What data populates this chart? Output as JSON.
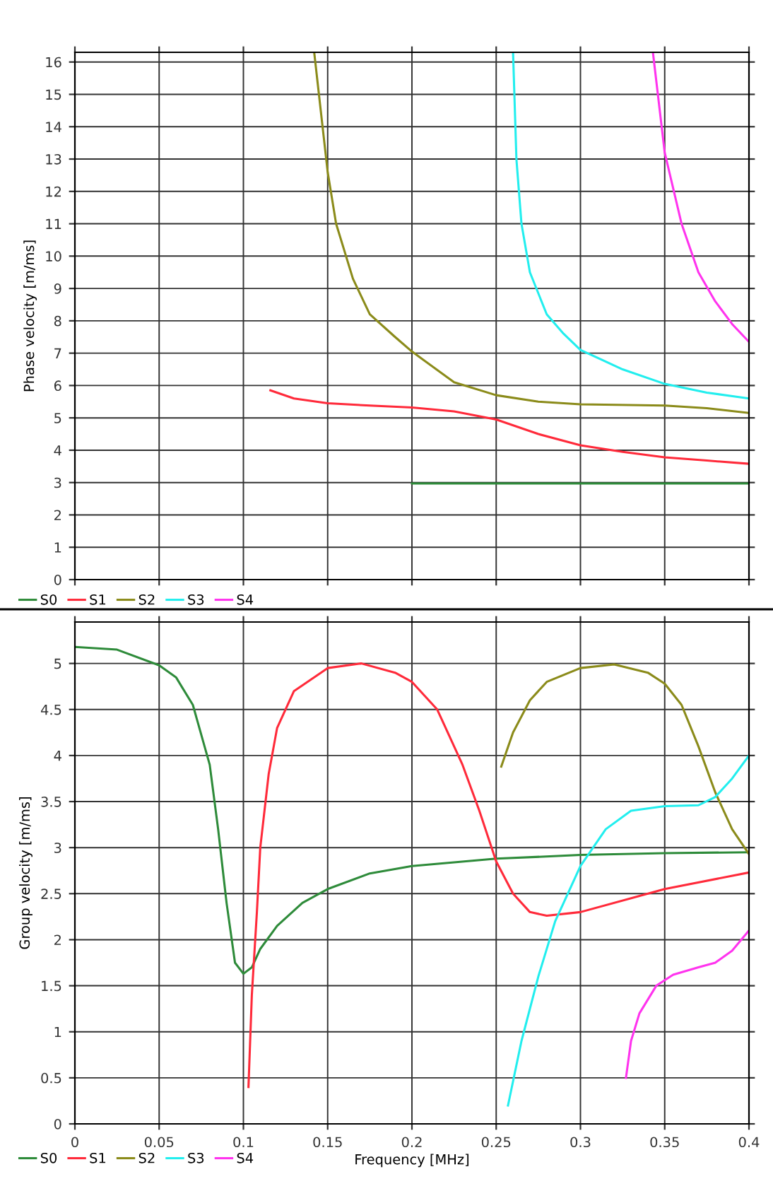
{
  "chart_data": [
    {
      "type": "line",
      "ylabel": "Phase velocity [m/ms]",
      "xlim": [
        0,
        0.4
      ],
      "xticks": [
        0,
        0.05,
        0.1,
        0.15,
        0.2,
        0.25,
        0.3,
        0.35,
        0.4
      ],
      "ylim": [
        0,
        16.3
      ],
      "yticks": [
        0,
        1,
        2,
        3,
        4,
        5,
        6,
        7,
        8,
        9,
        10,
        11,
        12,
        13,
        14,
        15,
        16
      ],
      "tick_labels": "y",
      "grid": true,
      "legend": "bottom left",
      "series": [
        {
          "name": "S0",
          "color": "#2e8b3a",
          "x": [
            0.2,
            0.25,
            0.3,
            0.35,
            0.4
          ],
          "values": [
            2.97,
            2.97,
            2.97,
            2.97,
            2.97
          ]
        },
        {
          "name": "S1",
          "color": "#ff2a3a",
          "x": [
            0.116,
            0.13,
            0.15,
            0.175,
            0.2,
            0.225,
            0.25,
            0.275,
            0.3,
            0.325,
            0.35,
            0.375,
            0.4
          ],
          "values": [
            5.85,
            5.6,
            5.45,
            5.38,
            5.32,
            5.2,
            4.95,
            4.5,
            4.15,
            3.95,
            3.78,
            3.68,
            3.58
          ]
        },
        {
          "name": "S2",
          "color": "#8b8b1a",
          "x": [
            0.142,
            0.15,
            0.155,
            0.165,
            0.175,
            0.19,
            0.2,
            0.225,
            0.25,
            0.275,
            0.3,
            0.35,
            0.375,
            0.4
          ],
          "values": [
            16.3,
            12.6,
            11,
            9.3,
            8.2,
            7.5,
            7.05,
            6.1,
            5.7,
            5.5,
            5.42,
            5.38,
            5.3,
            5.15
          ]
        },
        {
          "name": "S3",
          "color": "#22eeee",
          "x": [
            0.26,
            0.262,
            0.265,
            0.27,
            0.28,
            0.29,
            0.3,
            0.325,
            0.35,
            0.375,
            0.4
          ],
          "values": [
            16.3,
            13,
            11,
            9.5,
            8.2,
            7.6,
            7.1,
            6.5,
            6.05,
            5.78,
            5.6
          ]
        },
        {
          "name": "S4",
          "color": "#ff33ee",
          "x": [
            0.343,
            0.35,
            0.36,
            0.37,
            0.38,
            0.39,
            0.4
          ],
          "values": [
            16.3,
            13.2,
            11,
            9.5,
            8.6,
            7.9,
            7.35
          ]
        }
      ]
    },
    {
      "type": "line",
      "xlabel": "Frequency [MHz]",
      "ylabel": "Group velocity [m/ms]",
      "xlim": [
        0,
        0.4
      ],
      "xticks": [
        0,
        0.05,
        0.1,
        0.15,
        0.2,
        0.25,
        0.3,
        0.35,
        0.4
      ],
      "ylim": [
        0,
        5.45
      ],
      "yticks": [
        0,
        0.5,
        1,
        1.5,
        2,
        2.5,
        3,
        3.5,
        4,
        4.5,
        5
      ],
      "grid": true,
      "legend": "bottom left",
      "series": [
        {
          "name": "S0",
          "color": "#2e8b3a",
          "x": [
            0,
            0.025,
            0.05,
            0.06,
            0.07,
            0.08,
            0.085,
            0.09,
            0.095,
            0.1,
            0.105,
            0.11,
            0.12,
            0.135,
            0.15,
            0.175,
            0.2,
            0.25,
            0.3,
            0.35,
            0.4
          ],
          "values": [
            5.18,
            5.15,
            4.98,
            4.85,
            4.55,
            3.9,
            3.2,
            2.4,
            1.75,
            1.63,
            1.7,
            1.9,
            2.15,
            2.4,
            2.55,
            2.72,
            2.8,
            2.88,
            2.92,
            2.94,
            2.95
          ]
        },
        {
          "name": "S1",
          "color": "#ff2a3a",
          "x": [
            0.103,
            0.105,
            0.108,
            0.11,
            0.115,
            0.12,
            0.13,
            0.15,
            0.17,
            0.19,
            0.2,
            0.215,
            0.23,
            0.24,
            0.25,
            0.26,
            0.27,
            0.28,
            0.3,
            0.35,
            0.4
          ],
          "values": [
            0.4,
            1.4,
            2.3,
            3.0,
            3.8,
            4.3,
            4.7,
            4.95,
            5.0,
            4.9,
            4.8,
            4.5,
            3.9,
            3.4,
            2.85,
            2.5,
            2.3,
            2.26,
            2.3,
            2.55,
            2.73
          ]
        },
        {
          "name": "S2",
          "color": "#8b8b1a",
          "x": [
            0.253,
            0.26,
            0.27,
            0.28,
            0.3,
            0.32,
            0.34,
            0.35,
            0.36,
            0.37,
            0.38,
            0.39,
            0.4
          ],
          "values": [
            3.88,
            4.25,
            4.6,
            4.8,
            4.95,
            4.99,
            4.9,
            4.78,
            4.55,
            4.1,
            3.6,
            3.2,
            2.93
          ]
        },
        {
          "name": "S3",
          "color": "#22eeee",
          "x": [
            0.257,
            0.265,
            0.275,
            0.285,
            0.3,
            0.315,
            0.33,
            0.35,
            0.37,
            0.38,
            0.39,
            0.4
          ],
          "values": [
            0.2,
            0.9,
            1.6,
            2.2,
            2.8,
            3.2,
            3.4,
            3.45,
            3.46,
            3.55,
            3.75,
            4.0
          ]
        },
        {
          "name": "S4",
          "color": "#ff33ee",
          "x": [
            0.327,
            0.33,
            0.335,
            0.345,
            0.355,
            0.37,
            0.38,
            0.39,
            0.4
          ],
          "values": [
            0.5,
            0.9,
            1.2,
            1.5,
            1.62,
            1.7,
            1.75,
            1.88,
            2.1
          ]
        }
      ]
    }
  ]
}
